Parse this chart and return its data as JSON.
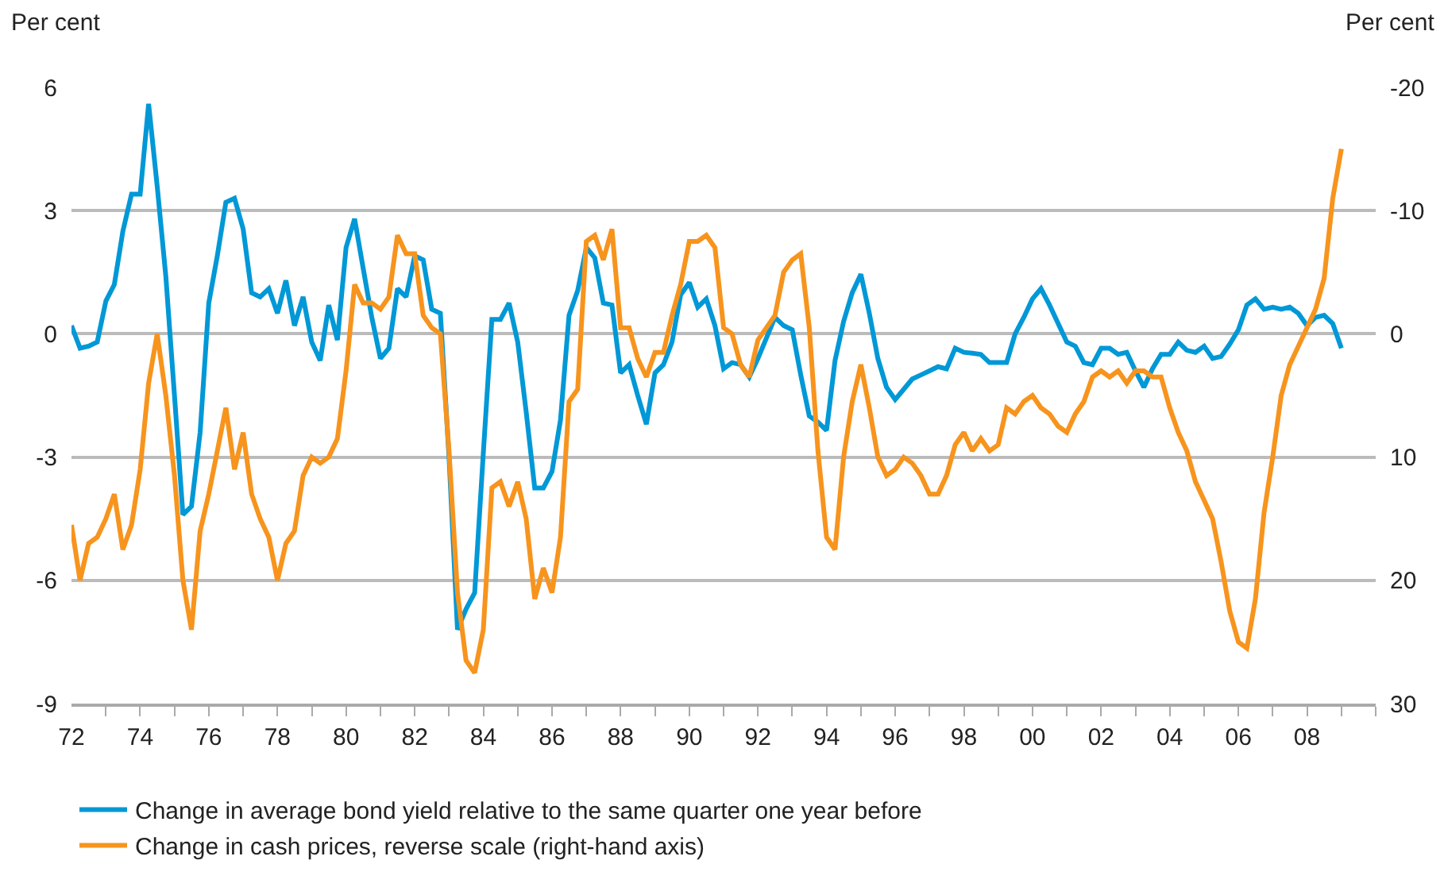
{
  "chart_data": {
    "type": "line",
    "ylabel": "Per cent",
    "y2label": "Per cent",
    "x": [
      "1972-01",
      "1972-04",
      "1972-07",
      "1972-10",
      "1973-01",
      "1973-04",
      "1973-07",
      "1973-10",
      "1974-01",
      "1974-04",
      "1974-07",
      "1974-10",
      "1975-01",
      "1975-04",
      "1975-07",
      "1975-10",
      "1976-01",
      "1976-04",
      "1976-07",
      "1976-10",
      "1977-01",
      "1977-04",
      "1977-07",
      "1977-10",
      "1978-01",
      "1978-04",
      "1978-07",
      "1978-10",
      "1979-01",
      "1979-04",
      "1979-07",
      "1979-10",
      "1980-01",
      "1980-04",
      "1980-07",
      "1980-10",
      "1981-01",
      "1981-04",
      "1981-07",
      "1981-10",
      "1982-01",
      "1982-04",
      "1982-07",
      "1982-10",
      "1983-01",
      "1983-04",
      "1983-07",
      "1983-10",
      "1984-01",
      "1984-04",
      "1984-07",
      "1984-10",
      "1985-01",
      "1985-04",
      "1985-07",
      "1985-10",
      "1986-01",
      "1986-04",
      "1986-07",
      "1986-10",
      "1987-01",
      "1987-04",
      "1987-07",
      "1987-10",
      "1988-01",
      "1988-04",
      "1988-07",
      "1988-10",
      "1989-01",
      "1989-04",
      "1989-07",
      "1989-10",
      "1990-01",
      "1990-04",
      "1990-07",
      "1990-10",
      "1991-01",
      "1991-04",
      "1991-07",
      "1991-10",
      "1992-01",
      "1992-04",
      "1992-07",
      "1992-10",
      "1993-01",
      "1993-04",
      "1993-07",
      "1993-10",
      "1994-01",
      "1994-04",
      "1994-07",
      "1994-10",
      "1995-01",
      "1995-04",
      "1995-07",
      "1995-10",
      "1996-01",
      "1996-04",
      "1996-07",
      "1996-10",
      "1997-01",
      "1997-04",
      "1997-07",
      "1997-10",
      "1998-01",
      "1998-04",
      "1998-07",
      "1998-10",
      "1999-01",
      "1999-04",
      "1999-07",
      "1999-10",
      "2000-01",
      "2000-04",
      "2000-07",
      "2000-10",
      "2001-01",
      "2001-04",
      "2001-07",
      "2001-10",
      "2002-01",
      "2002-04",
      "2002-07",
      "2002-10",
      "2003-01",
      "2003-04",
      "2003-07",
      "2003-10",
      "2004-01",
      "2004-04",
      "2004-07",
      "2004-10",
      "2005-01",
      "2005-04",
      "2005-07",
      "2005-10",
      "2006-01",
      "2006-04",
      "2006-07",
      "2006-10",
      "2007-01",
      "2007-04",
      "2007-07",
      "2007-10",
      "2008-01",
      "2008-04",
      "2008-07",
      "2008-10",
      "2009-01"
    ],
    "xlim": [
      "1972-01-01",
      "2010-01-01"
    ],
    "xticks": [
      {
        "value": "1972",
        "label": "72"
      },
      {
        "value": "1973",
        "label": null
      },
      {
        "value": "1974",
        "label": "74"
      },
      {
        "value": "1975",
        "label": null
      },
      {
        "value": "1976",
        "label": "76"
      },
      {
        "value": "1977",
        "label": null
      },
      {
        "value": "1978",
        "label": "78"
      },
      {
        "value": "1979",
        "label": null
      },
      {
        "value": "1980",
        "label": "80"
      },
      {
        "value": "1981",
        "label": null
      },
      {
        "value": "1982",
        "label": "82"
      },
      {
        "value": "1983",
        "label": null
      },
      {
        "value": "1984",
        "label": "84"
      },
      {
        "value": "1985",
        "label": null
      },
      {
        "value": "1986",
        "label": "86"
      },
      {
        "value": "1987",
        "label": null
      },
      {
        "value": "1988",
        "label": "88"
      },
      {
        "value": "1989",
        "label": null
      },
      {
        "value": "1990",
        "label": "90"
      },
      {
        "value": "1991",
        "label": null
      },
      {
        "value": "1992",
        "label": "92"
      },
      {
        "value": "1993",
        "label": null
      },
      {
        "value": "1994",
        "label": "94"
      },
      {
        "value": "1995",
        "label": null
      },
      {
        "value": "1996",
        "label": "96"
      },
      {
        "value": "1997",
        "label": null
      },
      {
        "value": "1998",
        "label": "98"
      },
      {
        "value": "1999",
        "label": null
      },
      {
        "value": "2000",
        "label": "00"
      },
      {
        "value": "2001",
        "label": null
      },
      {
        "value": "2002",
        "label": "02"
      },
      {
        "value": "2003",
        "label": null
      },
      {
        "value": "2004",
        "label": "04"
      },
      {
        "value": "2005",
        "label": null
      },
      {
        "value": "2006",
        "label": "06"
      },
      {
        "value": "2007",
        "label": null
      },
      {
        "value": "2008",
        "label": "08"
      },
      {
        "value": "2009",
        "label": null
      },
      {
        "value": "2010",
        "label": null
      }
    ],
    "ylim": [
      -9,
      6
    ],
    "yticks": [
      -9,
      -6,
      -3,
      0,
      3,
      6
    ],
    "y2lim": [
      30,
      -20
    ],
    "y2ticks": [
      -20,
      -10,
      0,
      10,
      20,
      30
    ],
    "grid": "y",
    "legend": "bottom",
    "marker": "none",
    "line_style": "solid",
    "series": [
      {
        "name": "Change in average bond yield relative to the same quarter one year before",
        "color": "#0098d6",
        "values": [
          0.2,
          -0.35,
          -0.3,
          -0.2,
          0.8,
          1.2,
          2.5,
          3.4,
          3.4,
          5.6,
          3.6,
          1.4,
          -1.5,
          -4.4,
          -4.2,
          -2.4,
          0.75,
          1.9,
          3.2,
          3.3,
          2.55,
          1.0,
          0.9,
          1.1,
          0.5,
          1.3,
          0.2,
          0.9,
          -0.2,
          -0.65,
          0.7,
          -0.15,
          2.1,
          2.8,
          1.6,
          0.4,
          -0.6,
          -0.35,
          1.1,
          0.9,
          1.9,
          1.8,
          0.6,
          0.5,
          -3.0,
          -7.2,
          -6.7,
          -6.3,
          -2.9,
          0.35,
          0.35,
          0.75,
          -0.2,
          -1.9,
          -3.75,
          -3.75,
          -3.35,
          -2.1,
          0.45,
          1.05,
          2.1,
          1.85,
          0.75,
          0.7,
          -0.95,
          -0.75,
          -1.5,
          -2.2,
          -0.95,
          -0.75,
          -0.2,
          0.95,
          1.25,
          0.65,
          0.85,
          0.2,
          -0.85,
          -0.7,
          -0.75,
          -1.05,
          -0.6,
          -0.1,
          0.4,
          0.2,
          0.1,
          -1.0,
          -2.0,
          -2.15,
          -2.35,
          -0.65,
          0.3,
          1.0,
          1.45,
          0.5,
          -0.6,
          -1.3,
          -1.6,
          -1.35,
          -1.1,
          -1.0,
          -0.9,
          -0.8,
          -0.85,
          -0.35,
          -0.45,
          -0.47,
          -0.5,
          -0.7,
          -0.7,
          -0.7,
          0.0,
          0.4,
          0.85,
          1.1,
          0.7,
          0.25,
          -0.2,
          -0.3,
          -0.7,
          -0.75,
          -0.35,
          -0.35,
          -0.5,
          -0.45,
          -0.9,
          -1.3,
          -0.85,
          -0.5,
          -0.5,
          -0.2,
          -0.4,
          -0.45,
          -0.3,
          -0.6,
          -0.55,
          -0.25,
          0.1,
          0.7,
          0.85,
          0.6,
          0.65,
          0.6,
          0.65,
          0.5,
          0.2,
          0.4,
          0.45,
          0.25,
          -0.35
        ]
      },
      {
        "name": "Change in cash prices, reverse scale (right-hand axis)",
        "color": "#f7941d",
        "axis": "y2",
        "values": [
          15.5,
          20,
          17,
          16.5,
          15,
          13,
          17.5,
          15.5,
          11,
          4,
          0,
          5,
          11.5,
          20,
          24,
          16,
          13,
          9.5,
          6,
          11,
          8,
          13,
          15,
          16.5,
          20,
          17,
          16,
          11.5,
          10,
          10.5,
          10,
          8.5,
          3,
          -4,
          -2.5,
          -2.5,
          -2,
          -3,
          -8,
          -6.5,
          -6.5,
          -1.5,
          -0.5,
          0,
          9.5,
          21,
          26.5,
          27.5,
          24,
          12.5,
          12,
          14,
          12,
          15,
          21.5,
          19,
          21,
          16.5,
          5.5,
          4.5,
          -7.5,
          -8,
          -6,
          -8.5,
          -0.5,
          -0.5,
          2,
          3.5,
          1.5,
          1.5,
          -1.5,
          -4,
          -7.5,
          -7.5,
          -8,
          -7,
          -0.5,
          0,
          2.5,
          3.5,
          0.5,
          -0.5,
          -1.5,
          -5,
          -6,
          -6.5,
          -0.5,
          9.5,
          16.5,
          17.5,
          10,
          5.5,
          2.5,
          6,
          10,
          11.5,
          11,
          10,
          10.5,
          11.5,
          13,
          13,
          11.5,
          9,
          8,
          9.5,
          8.5,
          9.5,
          9,
          6,
          6.5,
          5.5,
          5,
          6,
          6.5,
          7.5,
          8,
          6.5,
          5.5,
          3.5,
          3,
          3.5,
          3,
          4,
          3,
          3,
          3.5,
          3.5,
          6,
          8,
          9.5,
          12,
          13.5,
          15,
          18.5,
          22.5,
          25,
          25.5,
          21.5,
          14.5,
          10,
          5,
          2.5,
          1,
          -0.5,
          -2,
          -4.5,
          -11,
          -15
        ]
      }
    ]
  }
}
